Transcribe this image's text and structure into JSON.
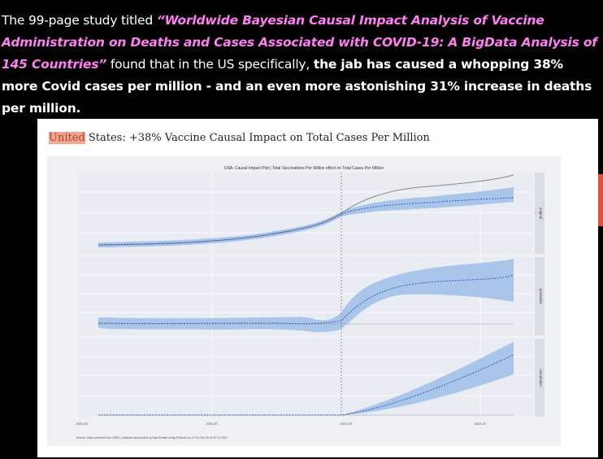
{
  "caption": {
    "prefix": "The 99-page study titled ",
    "study_title": "“Worldwide Bayesian Causal Impact Analysis of Vaccine Administration on Deaths and Cases Associated with COVID-19: A BigData Analysis of 145 Countries”",
    "middle": " found that in the US specifically, ",
    "bold_claim": "the jab has caused a whopping 38% more Covid cases per million - and an even more astonishing 31% increase in deaths per million.",
    "colors": {
      "study_title": "#ff7ff2",
      "text": "#ffffff",
      "background": "#000000"
    }
  },
  "figure": {
    "title_highlight": "United",
    "title_rest": " States: +38% Vaccine Causal Impact on Total Cases Per Million",
    "plot_title": "USA: Causal Impact Plot | Total Vaccinations Per Million effect on Total Cases Per Million",
    "panels": [
      "original",
      "pointwise",
      "cumulative"
    ],
    "x_ticks": [
      "2020-01",
      "2020-07",
      "2021-01",
      "2021-07"
    ],
    "source_note": "Source: Data collected from OWID, analysed and plotted by Kyle Beattie using R/Studio as of Thu Oct 28 22:57:11 2021",
    "colors": {
      "band": "#a9c5ea",
      "actual": "#888888",
      "predicted": "#3c5fb0",
      "panel_bg": "#e9ecf2"
    }
  }
}
